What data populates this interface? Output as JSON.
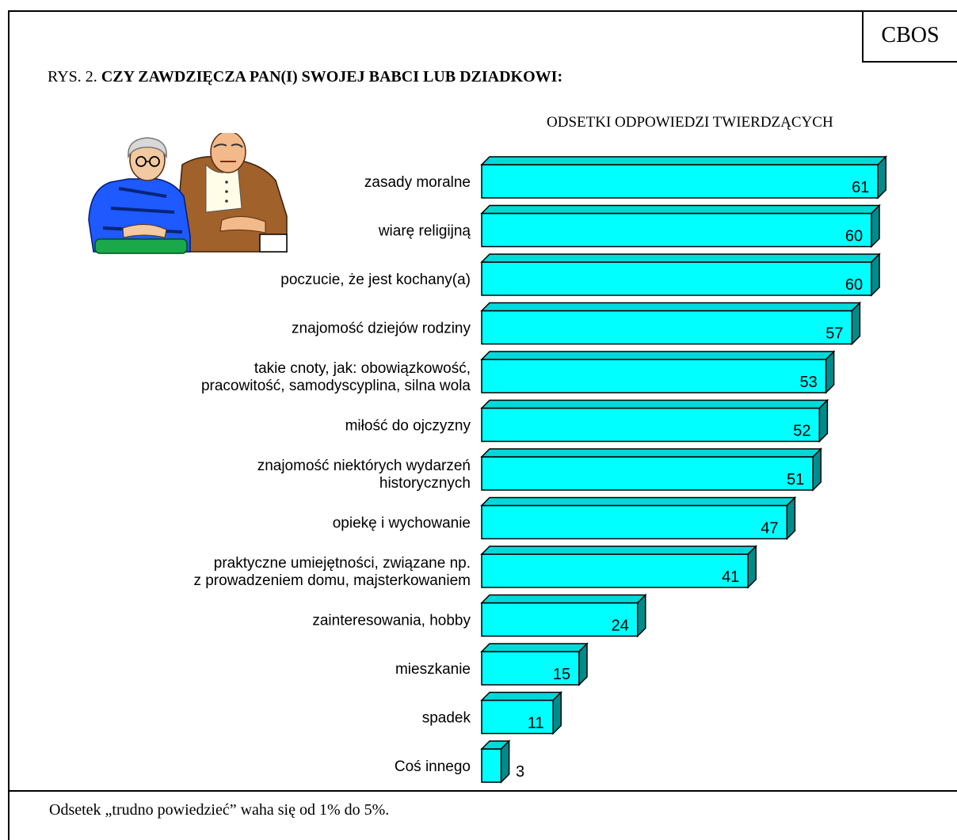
{
  "header": {
    "badge": "CBOS",
    "title_prefix": "RYS. 2.",
    "title_main": "CZY ZAWDZIĘCZA PAN(I) SWOJEJ BABCI LUB DZIADKOWI:",
    "subtitle": "ODSETKI ODPOWIEDZI TWIERDZĄCYCH"
  },
  "footer": {
    "note": "Odsetek „trudno powiedzieć” waha się od 1% do 5%."
  },
  "colors": {
    "bar_front": "#00ffff",
    "bar_top": "#00d9d9",
    "bar_side": "#008b8b"
  },
  "chart_data": {
    "type": "bar",
    "orientation": "horizontal",
    "title": "CZY ZAWDZIĘCZA PAN(I) SWOJEJ BABCI LUB DZIADKOWI:",
    "subtitle": "ODSETKI ODPOWIEDZI TWIERDZĄCYCH",
    "categories": [
      [
        "zasady moralne"
      ],
      [
        "wiarę religijną"
      ],
      [
        "poczucie, że jest kochany(a)"
      ],
      [
        "znajomość dziejów rodziny"
      ],
      [
        "takie cnoty, jak: obowiązkowość,",
        "pracowitość, samodyscyplina, silna wola"
      ],
      [
        "miłość do ojczyzny"
      ],
      [
        "znajomość niektórych wydarzeń",
        "historycznych"
      ],
      [
        "opiekę i wychowanie"
      ],
      [
        "praktyczne umiejętności, związane np.",
        "z prowadzeniem domu, majsterkowaniem"
      ],
      [
        "zainteresowania, hobby"
      ],
      [
        "mieszkanie"
      ],
      [
        "spadek"
      ],
      [
        "Coś innego"
      ]
    ],
    "values": [
      61,
      60,
      60,
      57,
      53,
      52,
      51,
      47,
      41,
      24,
      15,
      11,
      3
    ],
    "xlim": [
      0,
      61
    ],
    "grid": false,
    "legend": "none"
  }
}
